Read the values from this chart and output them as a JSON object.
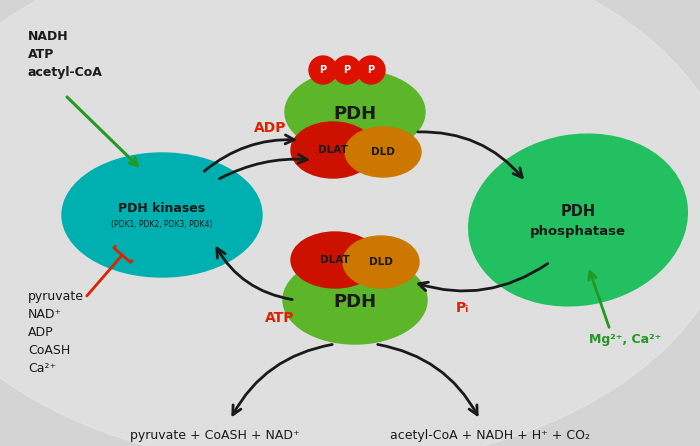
{
  "bg_color_top": "#e8e8e8",
  "bg_color_bottom": "#c8c8c8",
  "pdh_green": "#5db52a",
  "pdh_green_dark": "#4a9a1a",
  "dlat_red": "#cc1100",
  "dld_orange": "#cc7700",
  "kinase_teal": "#00b0b0",
  "phosphatase_green": "#22c060",
  "phospho_red": "#dd1100",
  "arrow_black": "#1a1a1a",
  "red_label": "#dd2200",
  "green_label": "#229922",
  "text_dark": "#1a1a1a",
  "label_nadh": "NADH\nATP\nacetyl-CoA",
  "label_pyruvate": "pyruvate\nNAD⁺\nADP\nCoASH\nCa²⁺",
  "label_bottom_left": "pyruvate + CoASH + NAD⁺",
  "label_bottom_right": "acetyl-CoA + NADH + H⁺ + CO₂",
  "label_adp": "ADP",
  "label_atp": "ATP",
  "label_pi": "Pᵢ",
  "label_mg": "Mg²⁺, Ca²⁺"
}
